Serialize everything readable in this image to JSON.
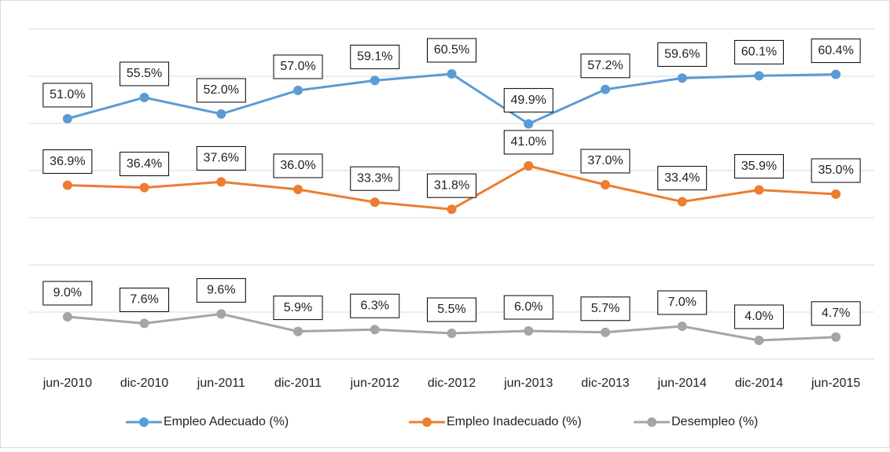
{
  "chart_data": {
    "type": "line",
    "categories": [
      "jun-2010",
      "dic-2010",
      "jun-2011",
      "dic-2011",
      "jun-2012",
      "dic-2012",
      "jun-2013",
      "dic-2013",
      "jun-2014",
      "dic-2014",
      "jun-2015"
    ],
    "series": [
      {
        "name": "Empleo Adecuado (%)",
        "color": "#5b9bd5",
        "values": [
          51.0,
          55.5,
          52.0,
          57.0,
          59.1,
          60.5,
          49.9,
          57.2,
          59.6,
          60.1,
          60.4
        ],
        "value_labels": [
          "51.0%",
          "55.5%",
          "52.0%",
          "57.0%",
          "59.1%",
          "60.5%",
          "49.9%",
          "57.2%",
          "59.6%",
          "60.1%",
          "60.4%"
        ]
      },
      {
        "name": "Empleo Inadecuado (%)",
        "color": "#ed7d31",
        "values": [
          36.9,
          36.4,
          37.6,
          36.0,
          33.3,
          31.8,
          41.0,
          37.0,
          33.4,
          35.9,
          35.0
        ],
        "value_labels": [
          "36.9%",
          "36.4%",
          "37.6%",
          "36.0%",
          "33.3%",
          "31.8%",
          "41.0%",
          "37.0%",
          "33.4%",
          "35.9%",
          "35.0%"
        ]
      },
      {
        "name": "Desempleo (%)",
        "color": "#a5a5a5",
        "values": [
          9.0,
          7.6,
          9.6,
          5.9,
          6.3,
          5.5,
          6.0,
          5.7,
          7.0,
          4.0,
          4.7
        ],
        "value_labels": [
          "9.0%",
          "7.6%",
          "9.6%",
          "5.9%",
          "6.3%",
          "5.5%",
          "6.0%",
          "5.7%",
          "7.0%",
          "4.0%",
          "4.7%"
        ]
      }
    ],
    "ylim": [
      0,
      70
    ],
    "yticks": [
      0,
      10,
      20,
      30,
      40,
      50,
      60,
      70
    ],
    "grid": true,
    "legend": "bottom"
  }
}
